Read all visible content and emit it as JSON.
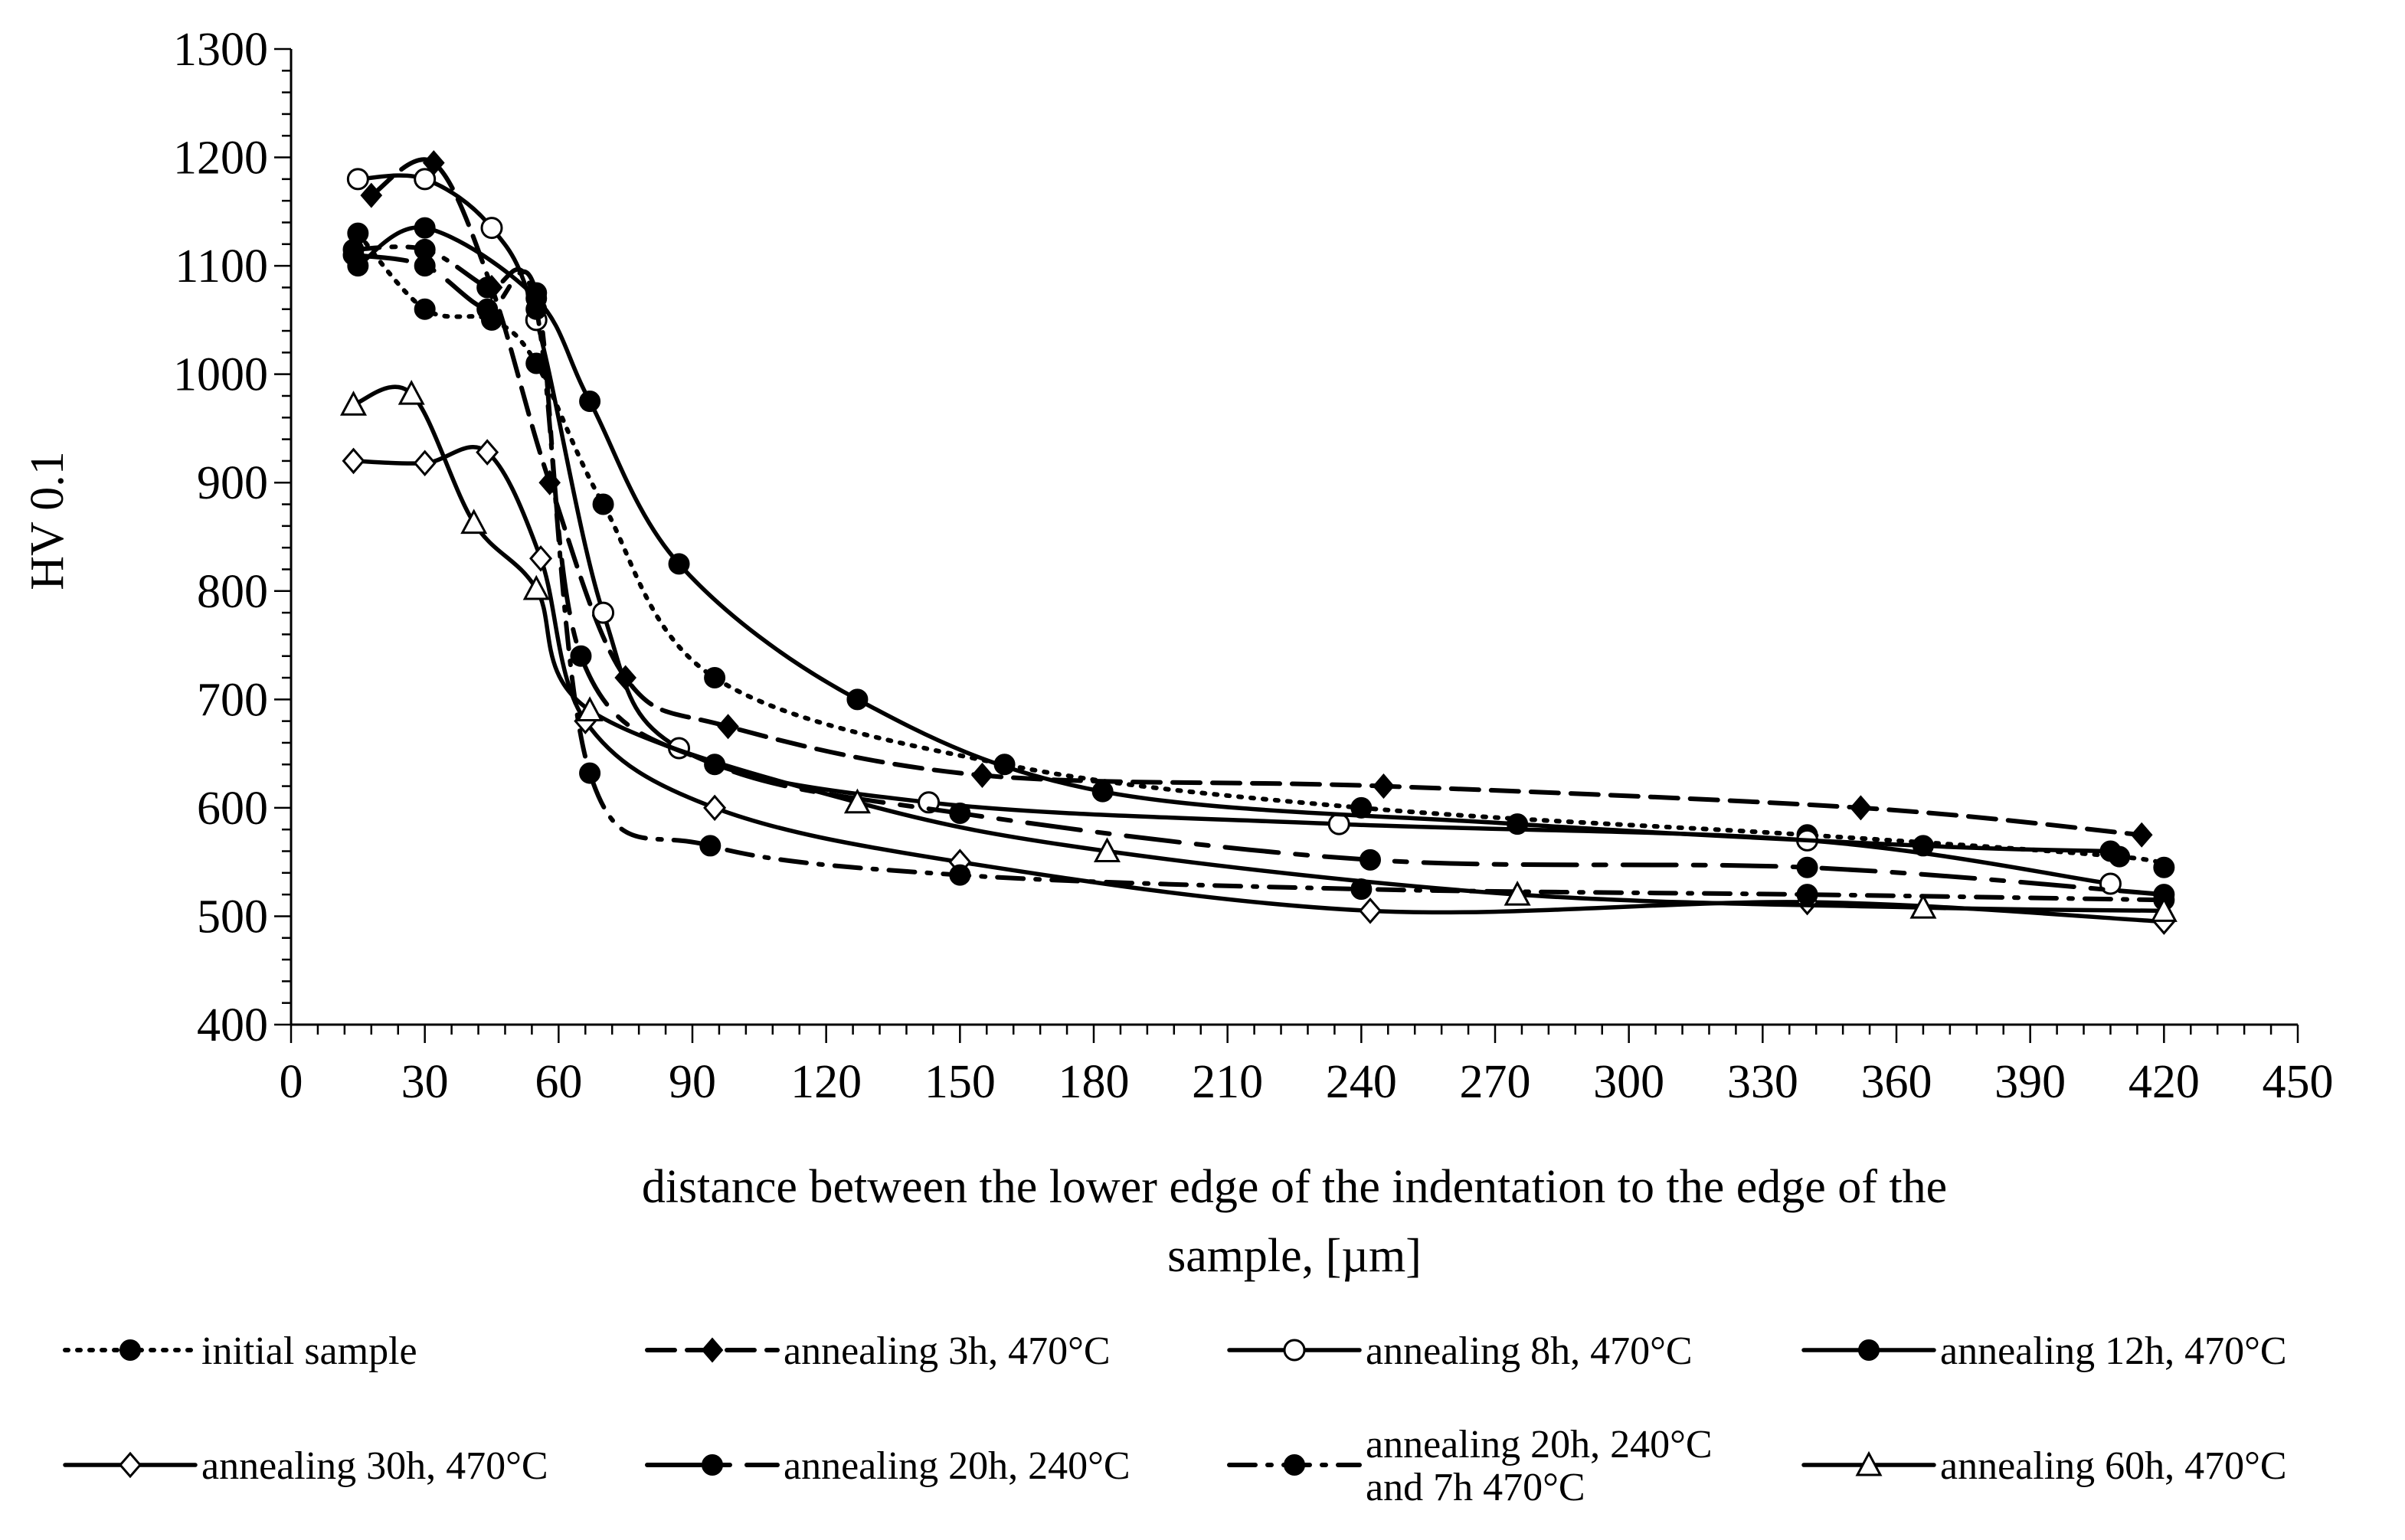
{
  "chart_data": {
    "type": "line",
    "title": "",
    "ylabel": "HV 0.1",
    "xlabel_lines": [
      "distance between the lower edge of the indentation to the edge of the",
      "sample, [µm]"
    ],
    "xlim": [
      0,
      450
    ],
    "ylim": [
      400,
      1300
    ],
    "xticks": [
      "0",
      "30",
      "60",
      "90",
      "120",
      "150",
      "180",
      "210",
      "240",
      "270",
      "300",
      "330",
      "360",
      "390",
      "420",
      "450"
    ],
    "yticks": [
      "400",
      "500",
      "600",
      "700",
      "800",
      "900",
      "1000",
      "1100",
      "1200",
      "1300"
    ],
    "series": [
      {
        "name": "initial sample",
        "label_lines": [
          "initial sample"
        ],
        "dash": "dot",
        "marker": "filled-circle",
        "x": [
          15,
          30,
          45,
          55,
          70,
          95,
          160,
          240,
          340,
          410,
          420
        ],
        "y": [
          1130,
          1060,
          1050,
          1010,
          880,
          720,
          640,
          600,
          575,
          555,
          545
        ]
      },
      {
        "name": "annealing 3h, 470°C",
        "label_lines": [
          "annealing 3h, 470°C"
        ],
        "dash": "dash",
        "marker": "filled-diamond",
        "x": [
          18,
          32,
          45,
          58,
          75,
          98,
          155,
          245,
          352,
          415
        ],
        "y": [
          1165,
          1195,
          1080,
          900,
          720,
          675,
          630,
          620,
          600,
          575
        ]
      },
      {
        "name": "annealing 8h, 470°C",
        "label_lines": [
          "annealing 8h, 470°C"
        ],
        "dash": "solid",
        "marker": "open-circle",
        "x": [
          15,
          30,
          45,
          55,
          70,
          87,
          143,
          235,
          340,
          408
        ],
        "y": [
          1180,
          1180,
          1135,
          1050,
          780,
          655,
          605,
          585,
          570,
          530
        ]
      },
      {
        "name": "annealing 12h, 470°C",
        "label_lines": [
          "annealing 12h, 470°C"
        ],
        "dash": "solid",
        "marker": "filled-circle",
        "x": [
          15,
          30,
          55,
          67,
          87,
          127,
          182,
          275,
          366,
          408
        ],
        "y": [
          1100,
          1135,
          1070,
          975,
          825,
          700,
          615,
          585,
          565,
          560
        ]
      },
      {
        "name": "annealing 30h, 470°C",
        "label_lines": [
          "annealing 30h, 470°C"
        ],
        "dash": "solid",
        "marker": "open-diamond",
        "x": [
          14,
          30,
          44,
          56,
          66,
          95,
          150,
          242,
          340,
          420
        ],
        "y": [
          920,
          918,
          928,
          830,
          680,
          600,
          550,
          505,
          513,
          495
        ]
      },
      {
        "name": "annealing 20h, 240°C",
        "label_lines": [
          "annealing 20h, 240°C"
        ],
        "dash": "longdash",
        "marker": "filled-circle",
        "x": [
          14,
          30,
          44,
          55,
          65,
          95,
          150,
          242,
          340,
          420
        ],
        "y": [
          1110,
          1100,
          1060,
          1075,
          740,
          640,
          595,
          552,
          545,
          520
        ]
      },
      {
        "name": "annealing 20h, 240°C and 7h 470°C",
        "label_lines": [
          "annealing 20h, 240°C",
          "and 7h 470°C"
        ],
        "dash": "dashdot",
        "marker": "filled-circle",
        "x": [
          14,
          30,
          44,
          55,
          67,
          94,
          150,
          240,
          340,
          420
        ],
        "y": [
          1115,
          1115,
          1080,
          1060,
          632,
          565,
          538,
          525,
          520,
          515
        ]
      },
      {
        "name": "annealing 60h, 470°C",
        "label_lines": [
          "annealing 60h, 470°C"
        ],
        "dash": "solid",
        "marker": "open-triangle",
        "x": [
          14,
          27,
          41,
          55,
          67,
          127,
          183,
          275,
          366,
          420
        ],
        "y": [
          972,
          982,
          863,
          802,
          690,
          605,
          560,
          520,
          508,
          505
        ]
      }
    ]
  }
}
